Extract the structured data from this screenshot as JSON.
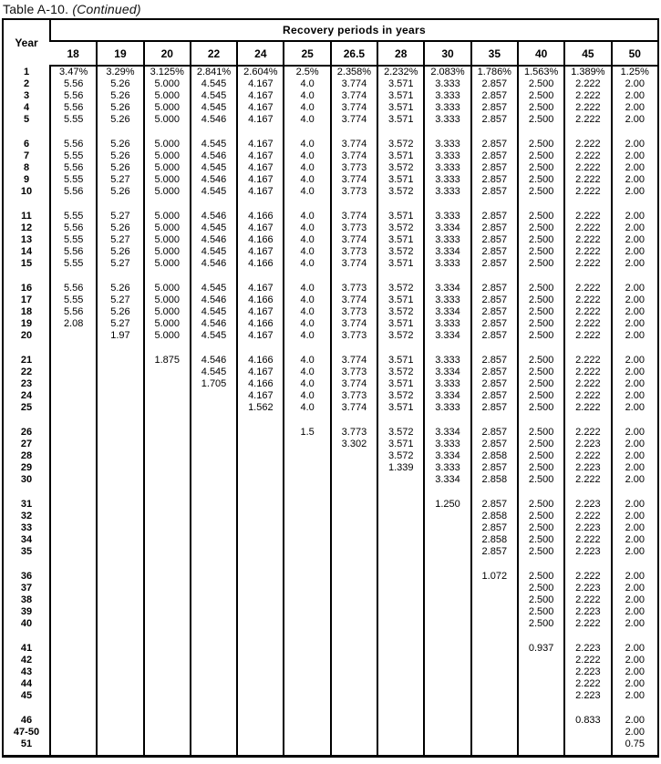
{
  "title": {
    "label": "Table A-10.",
    "continued": "(Continued)"
  },
  "table": {
    "year_header": "Year",
    "group_header": "Recovery periods in  years",
    "columns": [
      "18",
      "19",
      "20",
      "22",
      "24",
      "25",
      "26.5",
      "28",
      "30",
      "35",
      "40",
      "45",
      "50"
    ],
    "rows": [
      {
        "year": "1",
        "gap": false,
        "v": [
          "3.47%",
          "3.29%",
          "3.125%",
          "2.841%",
          "2.604%",
          "2.5%",
          "2.358%",
          "2.232%",
          "2.083%",
          "1.786%",
          "1.563%",
          "1.389%",
          "1.25%"
        ]
      },
      {
        "year": "2",
        "gap": false,
        "v": [
          "5.56",
          "5.26",
          "5.000",
          "4.545",
          "4.167",
          "4.0",
          "3.774",
          "3.571",
          "3.333",
          "2.857",
          "2.500",
          "2.222",
          "2.00"
        ]
      },
      {
        "year": "3",
        "gap": false,
        "v": [
          "5.56",
          "5.26",
          "5.000",
          "4.545",
          "4.167",
          "4.0",
          "3.774",
          "3.571",
          "3.333",
          "2.857",
          "2.500",
          "2.222",
          "2.00"
        ]
      },
      {
        "year": "4",
        "gap": false,
        "v": [
          "5.56",
          "5.26",
          "5.000",
          "4.545",
          "4.167",
          "4.0",
          "3.774",
          "3.571",
          "3.333",
          "2.857",
          "2.500",
          "2.222",
          "2.00"
        ]
      },
      {
        "year": "5",
        "gap": false,
        "v": [
          "5.55",
          "5.26",
          "5.000",
          "4.546",
          "4.167",
          "4.0",
          "3.774",
          "3.571",
          "3.333",
          "2.857",
          "2.500",
          "2.222",
          "2.00"
        ]
      },
      {
        "year": "6",
        "gap": true,
        "v": [
          "5.56",
          "5.26",
          "5.000",
          "4.545",
          "4.167",
          "4.0",
          "3.774",
          "3.572",
          "3.333",
          "2.857",
          "2.500",
          "2.222",
          "2.00"
        ]
      },
      {
        "year": "7",
        "gap": false,
        "v": [
          "5.55",
          "5.26",
          "5.000",
          "4.546",
          "4.167",
          "4.0",
          "3.774",
          "3.571",
          "3.333",
          "2.857",
          "2.500",
          "2.222",
          "2.00"
        ]
      },
      {
        "year": "8",
        "gap": false,
        "v": [
          "5.56",
          "5.26",
          "5.000",
          "4.545",
          "4.167",
          "4.0",
          "3.773",
          "3.572",
          "3.333",
          "2.857",
          "2.500",
          "2.222",
          "2.00"
        ]
      },
      {
        "year": "9",
        "gap": false,
        "v": [
          "5.55",
          "5.27",
          "5.000",
          "4.546",
          "4.167",
          "4.0",
          "3.774",
          "3.571",
          "3.333",
          "2.857",
          "2.500",
          "2.222",
          "2.00"
        ]
      },
      {
        "year": "10",
        "gap": false,
        "v": [
          "5.56",
          "5.26",
          "5.000",
          "4.545",
          "4.167",
          "4.0",
          "3.773",
          "3.572",
          "3.333",
          "2.857",
          "2.500",
          "2.222",
          "2.00"
        ]
      },
      {
        "year": "11",
        "gap": true,
        "v": [
          "5.55",
          "5.27",
          "5.000",
          "4.546",
          "4.166",
          "4.0",
          "3.774",
          "3.571",
          "3.333",
          "2.857",
          "2.500",
          "2.222",
          "2.00"
        ]
      },
      {
        "year": "12",
        "gap": false,
        "v": [
          "5.56",
          "5.26",
          "5.000",
          "4.545",
          "4.167",
          "4.0",
          "3.773",
          "3.572",
          "3.334",
          "2.857",
          "2.500",
          "2.222",
          "2.00"
        ]
      },
      {
        "year": "13",
        "gap": false,
        "v": [
          "5.55",
          "5.27",
          "5.000",
          "4.546",
          "4.166",
          "4.0",
          "3.774",
          "3.571",
          "3.333",
          "2.857",
          "2.500",
          "2.222",
          "2.00"
        ]
      },
      {
        "year": "14",
        "gap": false,
        "v": [
          "5.56",
          "5.26",
          "5.000",
          "4.545",
          "4.167",
          "4.0",
          "3.773",
          "3.572",
          "3.334",
          "2.857",
          "2.500",
          "2.222",
          "2.00"
        ]
      },
      {
        "year": "15",
        "gap": false,
        "v": [
          "5.55",
          "5.27",
          "5.000",
          "4.546",
          "4.166",
          "4.0",
          "3.774",
          "3.571",
          "3.333",
          "2.857",
          "2.500",
          "2.222",
          "2.00"
        ]
      },
      {
        "year": "16",
        "gap": true,
        "v": [
          "5.56",
          "5.26",
          "5.000",
          "4.545",
          "4.167",
          "4.0",
          "3.773",
          "3.572",
          "3.334",
          "2.857",
          "2.500",
          "2.222",
          "2.00"
        ]
      },
      {
        "year": "17",
        "gap": false,
        "v": [
          "5.55",
          "5.27",
          "5.000",
          "4.546",
          "4.166",
          "4.0",
          "3.774",
          "3.571",
          "3.333",
          "2.857",
          "2.500",
          "2.222",
          "2.00"
        ]
      },
      {
        "year": "18",
        "gap": false,
        "v": [
          "5.56",
          "5.26",
          "5.000",
          "4.545",
          "4.167",
          "4.0",
          "3.773",
          "3.572",
          "3.334",
          "2.857",
          "2.500",
          "2.222",
          "2.00"
        ]
      },
      {
        "year": "19",
        "gap": false,
        "v": [
          "2.08",
          "5.27",
          "5.000",
          "4.546",
          "4.166",
          "4.0",
          "3.774",
          "3.571",
          "3.333",
          "2.857",
          "2.500",
          "2.222",
          "2.00"
        ]
      },
      {
        "year": "20",
        "gap": false,
        "v": [
          "",
          "1.97",
          "5.000",
          "4.545",
          "4.167",
          "4.0",
          "3.773",
          "3.572",
          "3.334",
          "2.857",
          "2.500",
          "2.222",
          "2.00"
        ]
      },
      {
        "year": "21",
        "gap": true,
        "v": [
          "",
          "",
          "1.875",
          "4.546",
          "4.166",
          "4.0",
          "3.774",
          "3.571",
          "3.333",
          "2.857",
          "2.500",
          "2.222",
          "2.00"
        ]
      },
      {
        "year": "22",
        "gap": false,
        "v": [
          "",
          "",
          "",
          "4.545",
          "4.167",
          "4.0",
          "3.773",
          "3.572",
          "3.334",
          "2.857",
          "2.500",
          "2.222",
          "2.00"
        ]
      },
      {
        "year": "23",
        "gap": false,
        "v": [
          "",
          "",
          "",
          "1.705",
          "4.166",
          "4.0",
          "3.774",
          "3.571",
          "3.333",
          "2.857",
          "2.500",
          "2.222",
          "2.00"
        ]
      },
      {
        "year": "24",
        "gap": false,
        "v": [
          "",
          "",
          "",
          "",
          "4.167",
          "4.0",
          "3.773",
          "3.572",
          "3.334",
          "2.857",
          "2.500",
          "2.222",
          "2.00"
        ]
      },
      {
        "year": "25",
        "gap": false,
        "v": [
          "",
          "",
          "",
          "",
          "1.562",
          "4.0",
          "3.774",
          "3.571",
          "3.333",
          "2.857",
          "2.500",
          "2.222",
          "2.00"
        ]
      },
      {
        "year": "26",
        "gap": true,
        "v": [
          "",
          "",
          "",
          "",
          "",
          "1.5",
          "3.773",
          "3.572",
          "3.334",
          "2.857",
          "2.500",
          "2.222",
          "2.00"
        ]
      },
      {
        "year": "27",
        "gap": false,
        "v": [
          "",
          "",
          "",
          "",
          "",
          "",
          "3.302",
          "3.571",
          "3.333",
          "2.857",
          "2.500",
          "2.223",
          "2.00"
        ]
      },
      {
        "year": "28",
        "gap": false,
        "v": [
          "",
          "",
          "",
          "",
          "",
          "",
          "",
          "3.572",
          "3.334",
          "2.858",
          "2.500",
          "2.222",
          "2.00"
        ]
      },
      {
        "year": "29",
        "gap": false,
        "v": [
          "",
          "",
          "",
          "",
          "",
          "",
          "",
          "1.339",
          "3.333",
          "2.857",
          "2.500",
          "2.223",
          "2.00"
        ]
      },
      {
        "year": "30",
        "gap": false,
        "v": [
          "",
          "",
          "",
          "",
          "",
          "",
          "",
          "",
          "3.334",
          "2.858",
          "2.500",
          "2.222",
          "2.00"
        ]
      },
      {
        "year": "31",
        "gap": true,
        "v": [
          "",
          "",
          "",
          "",
          "",
          "",
          "",
          "",
          "1.250",
          "2.857",
          "2.500",
          "2.223",
          "2.00"
        ]
      },
      {
        "year": "32",
        "gap": false,
        "v": [
          "",
          "",
          "",
          "",
          "",
          "",
          "",
          "",
          "",
          "2.858",
          "2.500",
          "2.222",
          "2.00"
        ]
      },
      {
        "year": "33",
        "gap": false,
        "v": [
          "",
          "",
          "",
          "",
          "",
          "",
          "",
          "",
          "",
          "2.857",
          "2.500",
          "2.223",
          "2.00"
        ]
      },
      {
        "year": "34",
        "gap": false,
        "v": [
          "",
          "",
          "",
          "",
          "",
          "",
          "",
          "",
          "",
          "2.858",
          "2.500",
          "2.222",
          "2.00"
        ]
      },
      {
        "year": "35",
        "gap": false,
        "v": [
          "",
          "",
          "",
          "",
          "",
          "",
          "",
          "",
          "",
          "2.857",
          "2.500",
          "2.223",
          "2.00"
        ]
      },
      {
        "year": "36",
        "gap": true,
        "v": [
          "",
          "",
          "",
          "",
          "",
          "",
          "",
          "",
          "",
          "1.072",
          "2.500",
          "2.222",
          "2.00"
        ]
      },
      {
        "year": "37",
        "gap": false,
        "v": [
          "",
          "",
          "",
          "",
          "",
          "",
          "",
          "",
          "",
          "",
          "2.500",
          "2.223",
          "2.00"
        ]
      },
      {
        "year": "38",
        "gap": false,
        "v": [
          "",
          "",
          "",
          "",
          "",
          "",
          "",
          "",
          "",
          "",
          "2.500",
          "2.222",
          "2.00"
        ]
      },
      {
        "year": "39",
        "gap": false,
        "v": [
          "",
          "",
          "",
          "",
          "",
          "",
          "",
          "",
          "",
          "",
          "2.500",
          "2.223",
          "2.00"
        ]
      },
      {
        "year": "40",
        "gap": false,
        "v": [
          "",
          "",
          "",
          "",
          "",
          "",
          "",
          "",
          "",
          "",
          "2.500",
          "2.222",
          "2.00"
        ]
      },
      {
        "year": "41",
        "gap": true,
        "v": [
          "",
          "",
          "",
          "",
          "",
          "",
          "",
          "",
          "",
          "",
          "0.937",
          "2.223",
          "2.00"
        ]
      },
      {
        "year": "42",
        "gap": false,
        "v": [
          "",
          "",
          "",
          "",
          "",
          "",
          "",
          "",
          "",
          "",
          "",
          "2.222",
          "2.00"
        ]
      },
      {
        "year": "43",
        "gap": false,
        "v": [
          "",
          "",
          "",
          "",
          "",
          "",
          "",
          "",
          "",
          "",
          "",
          "2.223",
          "2.00"
        ]
      },
      {
        "year": "44",
        "gap": false,
        "v": [
          "",
          "",
          "",
          "",
          "",
          "",
          "",
          "",
          "",
          "",
          "",
          "2.222",
          "2.00"
        ]
      },
      {
        "year": "45",
        "gap": false,
        "v": [
          "",
          "",
          "",
          "",
          "",
          "",
          "",
          "",
          "",
          "",
          "",
          "2.223",
          "2.00"
        ]
      },
      {
        "year": "46",
        "gap": true,
        "v": [
          "",
          "",
          "",
          "",
          "",
          "",
          "",
          "",
          "",
          "",
          "",
          "0.833",
          "2.00"
        ]
      },
      {
        "year": "47-50",
        "gap": false,
        "v": [
          "",
          "",
          "",
          "",
          "",
          "",
          "",
          "",
          "",
          "",
          "",
          "",
          "2.00"
        ]
      },
      {
        "year": "51",
        "gap": false,
        "v": [
          "",
          "",
          "",
          "",
          "",
          "",
          "",
          "",
          "",
          "",
          "",
          "",
          "0.75"
        ]
      }
    ]
  }
}
